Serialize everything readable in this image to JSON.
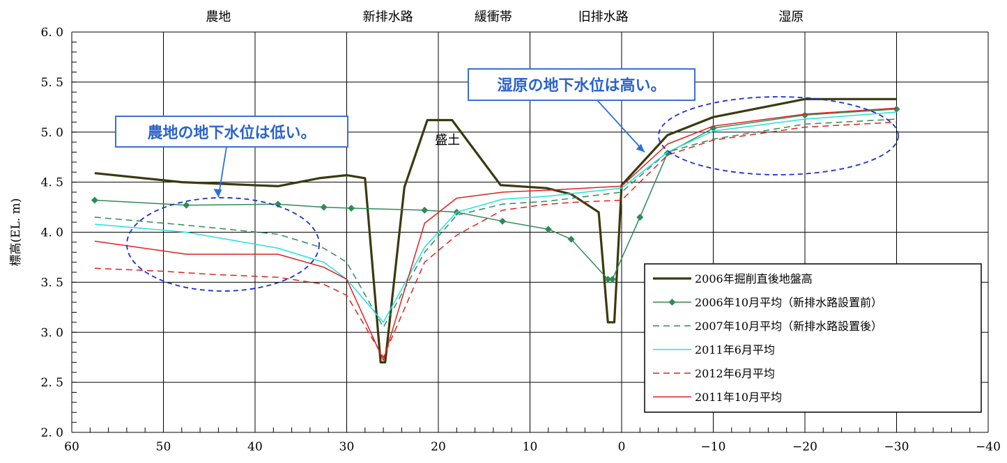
{
  "chart_data": {
    "type": "line",
    "title": "",
    "xlabel": "",
    "ylabel": "標高(EL. m)",
    "xlim": [
      60,
      -40
    ],
    "ylim": [
      2.0,
      6.0
    ],
    "x_ticks": [
      60,
      50,
      40,
      30,
      20,
      10,
      0,
      -10,
      -20,
      -30,
      -40
    ],
    "x_tick_labels": [
      "60",
      "50",
      "40",
      "30",
      "20",
      "10",
      "0",
      "−10",
      "−20",
      "−30",
      "−40"
    ],
    "y_ticks": [
      2.0,
      2.5,
      3.0,
      3.5,
      4.0,
      4.5,
      5.0,
      5.5,
      6.0
    ],
    "y_tick_labels": [
      "2. 0",
      "2. 5",
      "3. 0",
      "3. 5",
      "4. 0",
      "4. 5",
      "5. 0",
      "5. 5",
      "6. 0"
    ],
    "grid": true,
    "legend_position": "bottom-right",
    "zones": [
      {
        "label": "農地",
        "x": 44
      },
      {
        "label": "新排水路",
        "x": 25.5
      },
      {
        "label": "緩衝帯",
        "x": 14
      },
      {
        "label": "旧排水路",
        "x": 2
      },
      {
        "label": "湿原",
        "x": -18.5
      }
    ],
    "annotations": [
      {
        "text": "盛土",
        "x": 19,
        "y": 4.88
      },
      {
        "text": "湿原の地下水位は高い。",
        "type": "callout",
        "target_x": -2.5,
        "target_y": 4.8
      },
      {
        "text": "農地の地下水位は低い。",
        "type": "callout",
        "target_x": 44,
        "target_y": 4.35
      }
    ],
    "series": [
      {
        "name": "2006年掘削直後地盤高",
        "color": "#3a3a10",
        "width": 3.2,
        "dash": "",
        "marker": false,
        "points": [
          [
            57.5,
            4.59
          ],
          [
            48,
            4.5
          ],
          [
            37.5,
            4.46
          ],
          [
            33,
            4.54
          ],
          [
            30,
            4.57
          ],
          [
            28,
            4.54
          ],
          [
            26.3,
            2.7
          ],
          [
            25.8,
            2.7
          ],
          [
            23.7,
            4.45
          ],
          [
            21.2,
            5.12
          ],
          [
            18.5,
            5.12
          ],
          [
            13.2,
            4.47
          ],
          [
            8.2,
            4.44
          ],
          [
            5.5,
            4.38
          ],
          [
            2.5,
            4.2
          ],
          [
            1.5,
            3.1
          ],
          [
            0.8,
            3.1
          ],
          [
            0,
            4.47
          ],
          [
            -5,
            4.97
          ],
          [
            -10,
            5.15
          ],
          [
            -20,
            5.33
          ],
          [
            -30,
            5.33
          ]
        ]
      },
      {
        "name": "2006年10月平均（新排水路設置前）",
        "color": "#2e8b57",
        "width": 1.5,
        "dash": "",
        "marker": true,
        "points": [
          [
            57.5,
            4.32
          ],
          [
            47.5,
            4.27
          ],
          [
            37.5,
            4.28
          ],
          [
            32.5,
            4.25
          ],
          [
            29.5,
            4.24
          ],
          [
            21.5,
            4.22
          ],
          [
            18,
            4.2
          ],
          [
            13,
            4.11
          ],
          [
            8,
            4.03
          ],
          [
            5.5,
            3.93
          ],
          [
            1.5,
            3.53
          ],
          [
            1,
            3.53
          ],
          [
            -2,
            4.15
          ],
          [
            -5,
            4.79
          ],
          [
            -10,
            5.04
          ],
          [
            -20,
            5.17
          ],
          [
            -30,
            5.23
          ]
        ]
      },
      {
        "name": "2007年10月平均（新排水路設置後）",
        "color": "#2e8b57",
        "width": 1.5,
        "dash": "9 6",
        "marker": false,
        "points": [
          [
            57.5,
            4.15
          ],
          [
            47.5,
            4.07
          ],
          [
            37.5,
            3.98
          ],
          [
            32.5,
            3.84
          ],
          [
            30,
            3.7
          ],
          [
            26,
            3.05
          ],
          [
            21.5,
            3.8
          ],
          [
            18,
            4.17
          ],
          [
            13,
            4.28
          ],
          [
            8,
            4.31
          ],
          [
            0,
            4.4
          ],
          [
            -5,
            4.8
          ],
          [
            -10,
            4.93
          ],
          [
            -20,
            5.08
          ],
          [
            -30,
            5.13
          ]
        ]
      },
      {
        "name": "2011年6月平均",
        "color": "#22e0e0",
        "width": 1.5,
        "dash": "",
        "marker": false,
        "points": [
          [
            57.5,
            4.08
          ],
          [
            47.5,
            4.0
          ],
          [
            37.5,
            3.84
          ],
          [
            32.5,
            3.7
          ],
          [
            30,
            3.53
          ],
          [
            26,
            3.1
          ],
          [
            21.5,
            3.85
          ],
          [
            18,
            4.2
          ],
          [
            13,
            4.33
          ],
          [
            8,
            4.36
          ],
          [
            0,
            4.44
          ],
          [
            -5,
            4.8
          ],
          [
            -10,
            5.01
          ],
          [
            -20,
            5.13
          ],
          [
            -30,
            5.2
          ]
        ]
      },
      {
        "name": "2012年6月平均",
        "color": "#e02020",
        "width": 1.5,
        "dash": "9 6",
        "marker": false,
        "points": [
          [
            57.5,
            3.64
          ],
          [
            50,
            3.61
          ],
          [
            45,
            3.58
          ],
          [
            40,
            3.56
          ],
          [
            37.5,
            3.55
          ],
          [
            32.5,
            3.48
          ],
          [
            30,
            3.37
          ],
          [
            26,
            2.75
          ],
          [
            21.5,
            3.7
          ],
          [
            18,
            3.97
          ],
          [
            13,
            4.22
          ],
          [
            8,
            4.28
          ],
          [
            5,
            4.3
          ],
          [
            0,
            4.32
          ],
          [
            -5,
            4.77
          ],
          [
            -10,
            4.92
          ],
          [
            -20,
            5.05
          ],
          [
            -30,
            5.1
          ]
        ]
      },
      {
        "name": "2011年10月平均",
        "color": "#e02020",
        "width": 1.5,
        "dash": "",
        "marker": false,
        "points": [
          [
            57.5,
            3.91
          ],
          [
            47.5,
            3.78
          ],
          [
            37.5,
            3.78
          ],
          [
            32.5,
            3.65
          ],
          [
            30,
            3.53
          ],
          [
            26,
            2.72
          ],
          [
            21.5,
            4.09
          ],
          [
            18,
            4.34
          ],
          [
            13,
            4.4
          ],
          [
            8,
            4.42
          ],
          [
            0,
            4.46
          ],
          [
            -5,
            4.88
          ],
          [
            -10,
            5.06
          ],
          [
            -20,
            5.18
          ],
          [
            -30,
            5.24
          ]
        ]
      }
    ]
  }
}
